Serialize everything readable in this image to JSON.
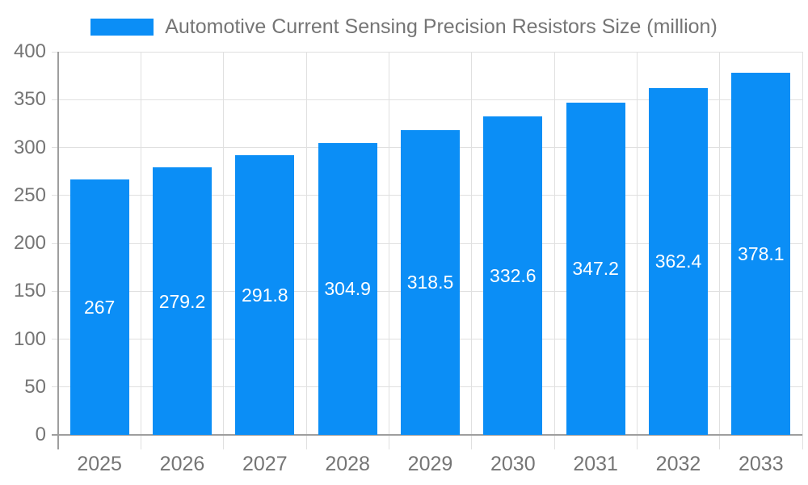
{
  "chart_data": {
    "type": "bar",
    "title": "Automotive Current Sensing Precision Resistors Size (million)",
    "legend_label": "Automotive Current Sensing Precision Resistors Size (million)",
    "legend_position": "top",
    "xlabel": "",
    "ylabel": "",
    "categories": [
      "2025",
      "2026",
      "2027",
      "2028",
      "2029",
      "2030",
      "2031",
      "2032",
      "2033"
    ],
    "series": [
      {
        "name": "Automotive Current Sensing Precision Resistors Size (million)",
        "values": [
          267,
          279.2,
          291.8,
          304.9,
          318.5,
          332.6,
          347.2,
          362.4,
          378.1
        ],
        "labels": [
          "267",
          "279.2",
          "291.8",
          "304.9",
          "318.5",
          "332.6",
          "347.2",
          "362.4",
          "378.1"
        ]
      }
    ],
    "ylim": [
      0,
      400
    ],
    "ytick_step": 50,
    "ytick_labels": [
      "0",
      "50",
      "100",
      "150",
      "200",
      "250",
      "300",
      "350",
      "400"
    ],
    "grid": true,
    "colors": {
      "bar": "#0b8ef6",
      "value_label": "#ffffff",
      "axis_line": "#9e9e9e",
      "gridline": "#e0e0e0",
      "tick_label": "#757575",
      "legend_text": "#757575",
      "background": "#ffffff"
    }
  }
}
